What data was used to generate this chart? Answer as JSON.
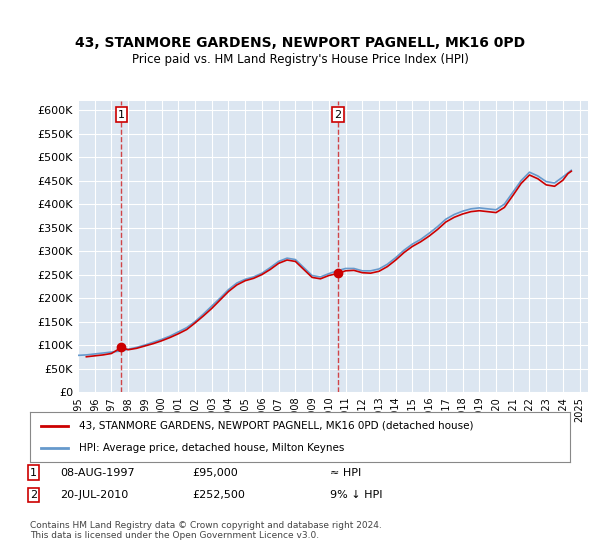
{
  "title": "43, STANMORE GARDENS, NEWPORT PAGNELL, MK16 0PD",
  "subtitle": "Price paid vs. HM Land Registry's House Price Index (HPI)",
  "background_color": "#dce6f1",
  "plot_bg_color": "#dce6f1",
  "ylabel_color": "#222222",
  "ylim": [
    0,
    620000
  ],
  "yticks": [
    0,
    50000,
    100000,
    150000,
    200000,
    250000,
    300000,
    350000,
    400000,
    450000,
    500000,
    550000,
    600000
  ],
  "xlim_start": 1995.0,
  "xlim_end": 2025.5,
  "legend_line1": "43, STANMORE GARDENS, NEWPORT PAGNELL, MK16 0PD (detached house)",
  "legend_line2": "HPI: Average price, detached house, Milton Keynes",
  "line1_color": "#cc0000",
  "line2_color": "#6699cc",
  "footnote": "Contains HM Land Registry data © Crown copyright and database right 2024.\nThis data is licensed under the Open Government Licence v3.0.",
  "sale1_date": 1997.6,
  "sale1_price": 95000,
  "sale1_label": "1",
  "sale1_note": "08-AUG-1997     £95,000          ≈ HPI",
  "sale2_date": 2010.55,
  "sale2_price": 252500,
  "sale2_label": "2",
  "sale2_note": "20-JUL-2010     £252,500          9% ↓ HPI",
  "hpi_years": [
    1995.0,
    1995.5,
    1996.0,
    1996.5,
    1997.0,
    1997.5,
    1998.0,
    1998.5,
    1999.0,
    1999.5,
    2000.0,
    2000.5,
    2001.0,
    2001.5,
    2002.0,
    2002.5,
    2003.0,
    2003.5,
    2004.0,
    2004.5,
    2005.0,
    2005.5,
    2006.0,
    2006.5,
    2007.0,
    2007.5,
    2008.0,
    2008.5,
    2009.0,
    2009.5,
    2010.0,
    2010.5,
    2011.0,
    2011.5,
    2012.0,
    2012.5,
    2013.0,
    2013.5,
    2014.0,
    2014.5,
    2015.0,
    2015.5,
    2016.0,
    2016.5,
    2017.0,
    2017.5,
    2018.0,
    2018.5,
    2019.0,
    2019.5,
    2020.0,
    2020.5,
    2021.0,
    2021.5,
    2022.0,
    2022.5,
    2023.0,
    2023.5,
    2024.0,
    2024.5
  ],
  "hpi_values": [
    78000,
    79000,
    81000,
    83000,
    85000,
    87000,
    91000,
    95000,
    100000,
    106000,
    112000,
    119000,
    128000,
    137000,
    150000,
    166000,
    183000,
    200000,
    218000,
    232000,
    240000,
    245000,
    253000,
    265000,
    278000,
    285000,
    282000,
    265000,
    248000,
    245000,
    252000,
    258000,
    263000,
    263000,
    258000,
    258000,
    262000,
    272000,
    286000,
    302000,
    315000,
    325000,
    338000,
    352000,
    368000,
    378000,
    385000,
    390000,
    392000,
    390000,
    388000,
    400000,
    425000,
    450000,
    468000,
    460000,
    448000,
    445000,
    458000,
    472000
  ],
  "price_paid_years": [
    1995.5,
    1996.0,
    1996.5,
    1997.0,
    1997.6,
    1998.0,
    1998.5,
    1999.0,
    1999.5,
    2000.0,
    2000.5,
    2001.0,
    2001.5,
    2002.0,
    2002.5,
    2003.0,
    2003.5,
    2004.0,
    2004.5,
    2005.0,
    2005.5,
    2006.0,
    2006.5,
    2007.0,
    2007.5,
    2008.0,
    2008.5,
    2009.0,
    2009.5,
    2010.0,
    2010.55,
    2011.0,
    2011.5,
    2012.0,
    2012.5,
    2013.0,
    2013.5,
    2014.0,
    2014.5,
    2015.0,
    2015.5,
    2016.0,
    2016.5,
    2017.0,
    2017.5,
    2018.0,
    2018.5,
    2019.0,
    2019.5,
    2020.0,
    2020.5,
    2021.0,
    2021.5,
    2022.0,
    2022.5,
    2023.0,
    2023.5,
    2024.0,
    2024.3,
    2024.5
  ],
  "price_paid_values": [
    75000,
    77000,
    79000,
    82000,
    95000,
    90000,
    93000,
    98000,
    103000,
    109000,
    116000,
    124000,
    133000,
    147000,
    162000,
    178000,
    196000,
    214000,
    228000,
    237000,
    242000,
    250000,
    261000,
    274000,
    281000,
    278000,
    261000,
    244000,
    241000,
    248000,
    252500,
    258000,
    259000,
    254000,
    253000,
    257000,
    267000,
    281000,
    297000,
    310000,
    320000,
    332000,
    346000,
    362000,
    372000,
    379000,
    384000,
    386000,
    384000,
    382000,
    393000,
    418000,
    444000,
    462000,
    454000,
    441000,
    438000,
    451000,
    465000,
    470000
  ],
  "xtick_years": [
    1995,
    1996,
    1997,
    1998,
    1999,
    2000,
    2001,
    2002,
    2003,
    2004,
    2005,
    2006,
    2007,
    2008,
    2009,
    2010,
    2011,
    2012,
    2013,
    2014,
    2015,
    2016,
    2017,
    2018,
    2019,
    2020,
    2021,
    2022,
    2023,
    2024,
    2025
  ]
}
